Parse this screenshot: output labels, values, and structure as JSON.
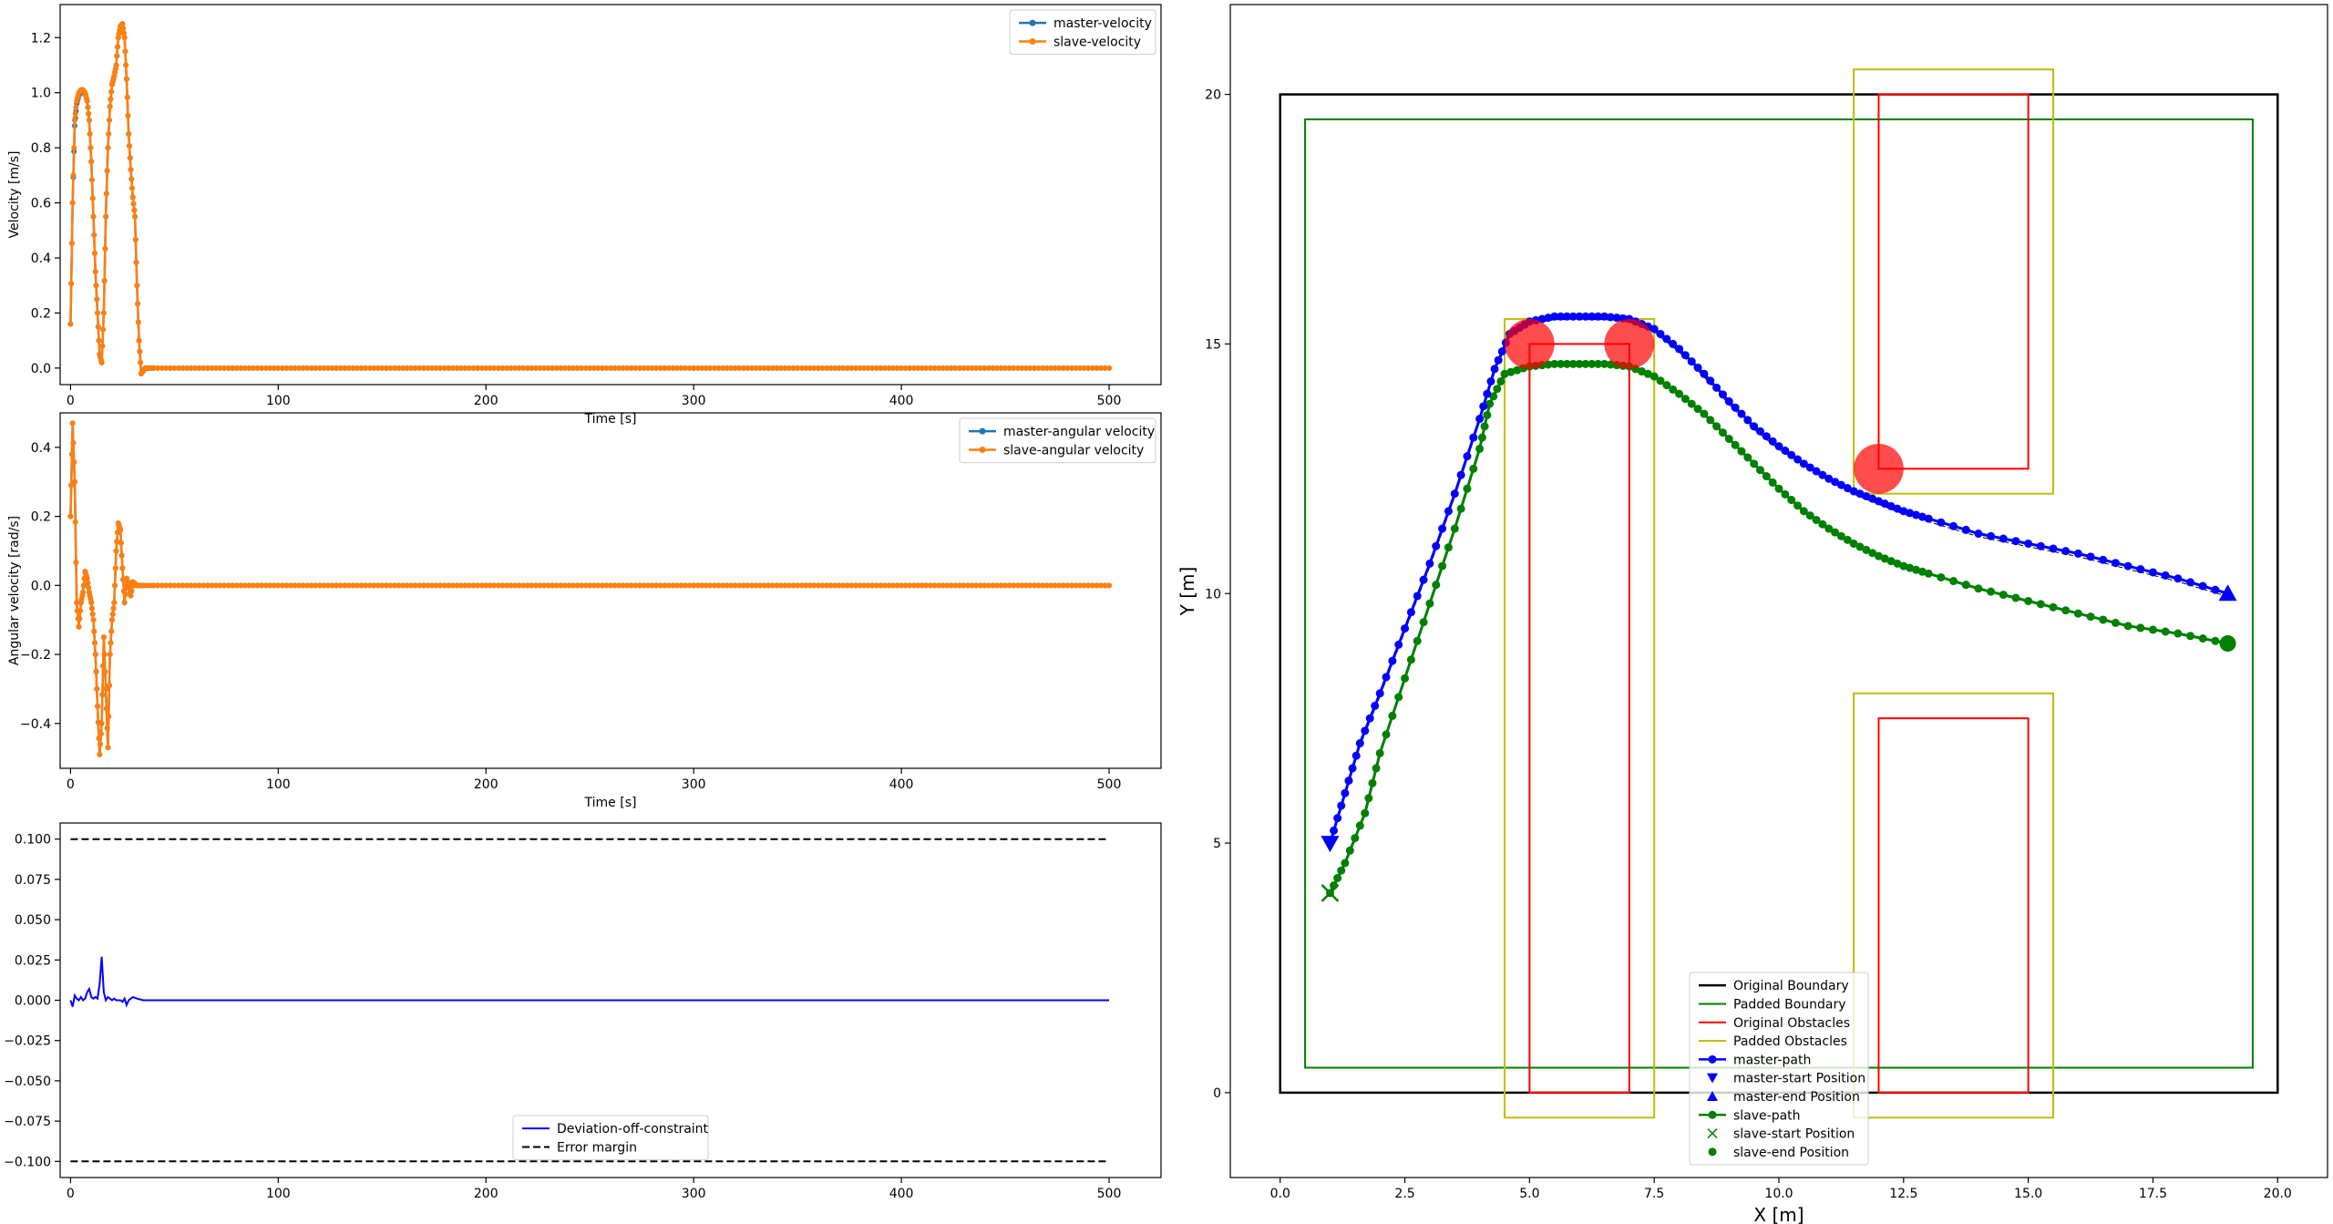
{
  "chart_data": [
    {
      "type": "line",
      "id": "velocity",
      "xlabel": "Time [s]",
      "ylabel": "Velocity [m/s]",
      "xlim": [
        -5,
        525
      ],
      "ylim": [
        -0.06,
        1.32
      ],
      "xticks": [
        0,
        100,
        200,
        300,
        400,
        500
      ],
      "yticks": [
        0.0,
        0.2,
        0.4,
        0.6,
        0.8,
        1.0,
        1.2
      ],
      "ytick_labels": [
        "0.0",
        "0.2",
        "0.4",
        "0.6",
        "0.8",
        "1.0",
        "1.2"
      ],
      "legend_position": "top-right",
      "series": [
        {
          "name": "master-velocity",
          "color": "#1f77b4",
          "x": [
            0,
            1,
            2,
            3,
            4,
            5,
            6,
            7,
            8,
            9,
            10,
            11,
            12,
            13,
            14,
            15,
            16,
            17,
            18,
            19,
            20,
            21,
            22,
            23,
            24,
            25,
            26,
            27,
            28,
            29,
            30,
            31,
            32,
            33,
            34,
            35,
            36,
            38,
            40,
            500
          ],
          "y": [
            0.16,
            0.6,
            0.88,
            0.96,
            0.99,
            1.0,
            1.01,
            1.0,
            0.97,
            0.9,
            0.75,
            0.55,
            0.35,
            0.2,
            0.05,
            0.02,
            0.2,
            0.55,
            0.8,
            0.95,
            1.03,
            1.06,
            1.1,
            1.2,
            1.24,
            1.25,
            1.2,
            1.05,
            0.85,
            0.72,
            0.62,
            0.55,
            0.3,
            0.1,
            -0.02,
            -0.01,
            0.0,
            0.0,
            0.0,
            0.0
          ]
        },
        {
          "name": "slave-velocity",
          "color": "#ff7f0e",
          "x": [
            0,
            1,
            2,
            3,
            4,
            5,
            6,
            7,
            8,
            9,
            10,
            11,
            12,
            13,
            14,
            15,
            16,
            17,
            18,
            19,
            20,
            21,
            22,
            23,
            24,
            25,
            26,
            27,
            28,
            29,
            30,
            31,
            32,
            33,
            34,
            35,
            36,
            38,
            40,
            500
          ],
          "y": [
            0.16,
            0.6,
            0.9,
            0.97,
            1.0,
            1.01,
            1.01,
            1.0,
            0.97,
            0.9,
            0.75,
            0.55,
            0.35,
            0.2,
            0.05,
            0.02,
            0.2,
            0.55,
            0.8,
            0.95,
            1.03,
            1.06,
            1.1,
            1.2,
            1.24,
            1.25,
            1.2,
            1.05,
            0.85,
            0.72,
            0.62,
            0.55,
            0.3,
            0.1,
            -0.02,
            -0.01,
            0.0,
            0.0,
            0.0,
            0.0
          ]
        }
      ]
    },
    {
      "type": "line",
      "id": "angular",
      "xlabel": "Time [s]",
      "ylabel": "Angular velocity [rad/s]",
      "xlim": [
        -5,
        525
      ],
      "ylim": [
        -0.53,
        0.5
      ],
      "xticks": [
        0,
        100,
        200,
        300,
        400,
        500
      ],
      "yticks": [
        -0.4,
        -0.2,
        0.0,
        0.2,
        0.4
      ],
      "ytick_labels": [
        "−0.4",
        "−0.2",
        "0.0",
        "0.2",
        "0.4"
      ],
      "legend_position": "top-right",
      "series": [
        {
          "name": "master-angular velocity",
          "color": "#1f77b4",
          "x": [
            0,
            1,
            2,
            3,
            4,
            5,
            6,
            7,
            8,
            9,
            10,
            11,
            12,
            13,
            14,
            15,
            16,
            17,
            18,
            19,
            20,
            21,
            22,
            23,
            24,
            25,
            26,
            27,
            28,
            29,
            30,
            32,
            35,
            40,
            500
          ],
          "y": [
            0.2,
            0.47,
            0.3,
            -0.05,
            -0.12,
            -0.05,
            -0.02,
            0.04,
            0.02,
            -0.02,
            -0.05,
            -0.1,
            -0.2,
            -0.35,
            -0.49,
            -0.4,
            -0.15,
            -0.3,
            -0.47,
            -0.2,
            -0.1,
            -0.05,
            0.1,
            0.18,
            0.16,
            0.05,
            -0.05,
            0.02,
            0.0,
            -0.03,
            0.01,
            0.0,
            0.0,
            0.0,
            0.0
          ]
        },
        {
          "name": "slave-angular velocity",
          "color": "#ff7f0e",
          "x": [
            0,
            1,
            2,
            3,
            4,
            5,
            6,
            7,
            8,
            9,
            10,
            11,
            12,
            13,
            14,
            15,
            16,
            17,
            18,
            19,
            20,
            21,
            22,
            23,
            24,
            25,
            26,
            27,
            28,
            29,
            30,
            32,
            35,
            40,
            500
          ],
          "y": [
            0.2,
            0.47,
            0.3,
            -0.05,
            -0.12,
            -0.05,
            -0.02,
            0.04,
            0.02,
            -0.02,
            -0.05,
            -0.1,
            -0.2,
            -0.35,
            -0.49,
            -0.4,
            -0.15,
            -0.3,
            -0.47,
            -0.2,
            -0.1,
            -0.05,
            0.1,
            0.18,
            0.16,
            0.05,
            -0.05,
            0.02,
            0.0,
            -0.03,
            0.01,
            0.0,
            0.0,
            0.0,
            0.0
          ]
        }
      ]
    },
    {
      "type": "line",
      "id": "deviation",
      "xlabel": "",
      "ylabel": "",
      "xlim": [
        -5,
        525
      ],
      "ylim": [
        -0.11,
        0.11
      ],
      "xticks": [
        0,
        100,
        200,
        300,
        400,
        500
      ],
      "yticks": [
        -0.1,
        -0.075,
        -0.05,
        -0.025,
        0.0,
        0.025,
        0.05,
        0.075,
        0.1
      ],
      "ytick_labels": [
        "−0.100",
        "−0.075",
        "−0.050",
        "−0.025",
        "0.000",
        "0.025",
        "0.050",
        "0.075",
        "0.100"
      ],
      "legend_position": "bottom-center",
      "series": [
        {
          "name": "Deviation-off-constraint",
          "color": "#0000ff",
          "x": [
            0,
            1,
            2,
            3,
            4,
            5,
            6,
            7,
            8,
            9,
            10,
            11,
            12,
            13,
            14,
            15,
            16,
            17,
            18,
            19,
            20,
            21,
            22,
            23,
            24,
            25,
            26,
            27,
            28,
            29,
            30,
            32,
            35,
            40,
            500
          ],
          "y": [
            0.0,
            -0.004,
            0.003,
            0.001,
            0.0,
            0.002,
            0.0,
            0.001,
            0.005,
            0.007,
            0.002,
            0.001,
            0.002,
            0.001,
            0.01,
            0.027,
            0.005,
            0.0,
            0.002,
            0.001,
            0.0,
            0.001,
            0.0,
            0.0,
            0.0,
            -0.001,
            0.001,
            -0.003,
            0.0,
            0.001,
            0.002,
            0.001,
            0.0,
            0.0,
            0.0
          ]
        },
        {
          "name": "Error margin",
          "color": "#000000",
          "dashed": true,
          "x": [
            0,
            500
          ],
          "y": [
            0.1,
            0.1
          ]
        }
      ],
      "error_margin_lower": {
        "x": [
          0,
          500
        ],
        "y": [
          -0.1,
          -0.1
        ]
      }
    },
    {
      "type": "scatter",
      "id": "map",
      "xlabel": "X [m]",
      "ylabel": "Y [m]",
      "xlim": [
        -1.0,
        21.0
      ],
      "ylim": [
        -1.7,
        21.8
      ],
      "xticks": [
        0.0,
        2.5,
        5.0,
        7.5,
        10.0,
        12.5,
        15.0,
        17.5,
        20.0
      ],
      "xtick_labels": [
        "0.0",
        "2.5",
        "5.0",
        "7.5",
        "10.0",
        "12.5",
        "15.0",
        "17.5",
        "20.0"
      ],
      "yticks": [
        0,
        5,
        10,
        15,
        20
      ],
      "ytick_labels": [
        "0",
        "5",
        "10",
        "15",
        "20"
      ],
      "legend_position": "bottom-center",
      "original_boundary": [
        0,
        0,
        20,
        20
      ],
      "padded_boundary": [
        0.5,
        0.5,
        19.5,
        19.5
      ],
      "original_obstacles": [
        [
          5,
          0,
          7,
          15
        ],
        [
          12,
          12.5,
          15,
          20
        ],
        [
          12,
          0,
          15,
          7.5
        ]
      ],
      "padded_obstacles": [
        [
          4.5,
          -0.5,
          7.5,
          15.5
        ],
        [
          11.5,
          12,
          15.5,
          20.5
        ],
        [
          11.5,
          -0.5,
          15.5,
          8
        ]
      ],
      "circles": [
        [
          5,
          15
        ],
        [
          7,
          15
        ],
        [
          12,
          12.5
        ]
      ],
      "circle_color": "#ff0000",
      "master_path": {
        "x": [
          1.0,
          1.3,
          1.6,
          2.0,
          2.5,
          3.0,
          3.5,
          4.0,
          4.3,
          4.6,
          5.0,
          5.5,
          6.0,
          6.5,
          7.0,
          7.5,
          8.0,
          8.5,
          9.0,
          9.5,
          10.0,
          10.5,
          11.0,
          11.5,
          12.0,
          12.5,
          13.0,
          14.0,
          15.0,
          16.0,
          17.0,
          18.0,
          19.0
        ],
        "y": [
          5.0,
          6.0,
          7.0,
          8.0,
          9.3,
          10.6,
          12.0,
          13.5,
          14.5,
          15.2,
          15.45,
          15.55,
          15.55,
          15.55,
          15.5,
          15.3,
          14.9,
          14.4,
          13.85,
          13.35,
          12.95,
          12.6,
          12.3,
          12.05,
          11.85,
          11.65,
          11.5,
          11.2,
          11.0,
          10.8,
          10.55,
          10.3,
          10.0
        ],
        "color": "#0000ff"
      },
      "slave_path": {
        "x": [
          1.0,
          1.3,
          1.7,
          2.0,
          2.5,
          3.0,
          3.5,
          4.0,
          4.2,
          4.5,
          5.0,
          5.5,
          6.0,
          6.5,
          7.0,
          7.5,
          8.0,
          8.5,
          9.0,
          9.5,
          10.0,
          10.5,
          11.0,
          11.5,
          12.0,
          12.5,
          13.0,
          14.0,
          15.0,
          16.0,
          17.0,
          18.0,
          19.0
        ],
        "y": [
          4.0,
          4.6,
          5.6,
          6.8,
          8.3,
          9.8,
          11.3,
          12.9,
          13.8,
          14.4,
          14.55,
          14.6,
          14.6,
          14.6,
          14.55,
          14.35,
          14.0,
          13.6,
          13.1,
          12.6,
          12.1,
          11.65,
          11.3,
          11.0,
          10.75,
          10.55,
          10.4,
          10.1,
          9.85,
          9.6,
          9.35,
          9.2,
          9.0
        ],
        "color": "#008000"
      },
      "master_start": [
        1.0,
        5.0
      ],
      "master_end": [
        19.0,
        10.0
      ],
      "slave_start": [
        1.0,
        4.0
      ],
      "slave_end": [
        19.0,
        9.0
      ],
      "legend": [
        "Original Boundary",
        "Padded Boundary",
        "Original Obstacles",
        "Padded Obstacles",
        "master-path",
        "master-start Position",
        "master-end Position",
        "slave-path",
        "slave-start Position",
        "slave-end Position"
      ]
    }
  ]
}
